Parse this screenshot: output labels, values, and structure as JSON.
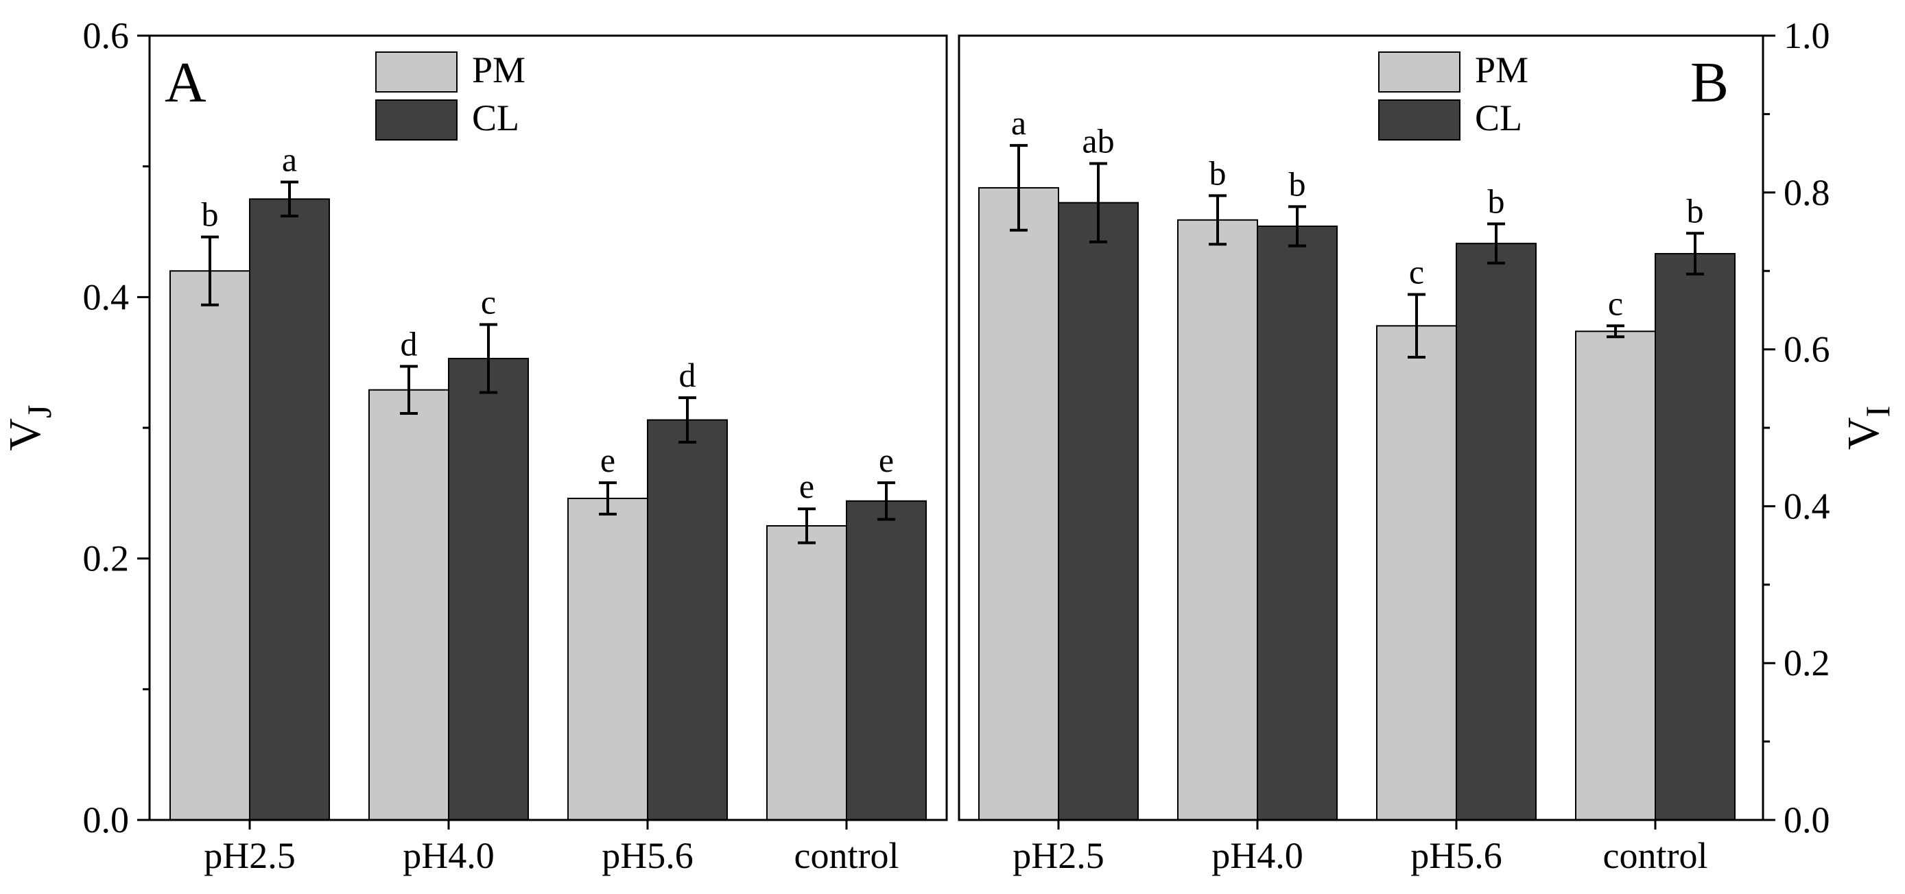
{
  "colors": {
    "PM": "#c8c8c8",
    "CL": "#404040",
    "stroke": "#000000"
  },
  "chart_data": [
    {
      "type": "bar",
      "panel_label": "A",
      "categories": [
        "pH2.5",
        "pH4.0",
        "pH5.6",
        "control"
      ],
      "ylabel_main": "V",
      "ylabel_sub": "J",
      "yaxis_side": "left",
      "ylim": [
        0,
        0.6
      ],
      "yticks": [
        "0.0",
        "0.2",
        "0.4",
        "0.6"
      ],
      "legend_position": "top-center",
      "series": [
        {
          "name": "PM",
          "values": [
            0.42,
            0.329,
            0.246,
            0.225
          ],
          "errors": [
            0.026,
            0.018,
            0.012,
            0.013
          ],
          "labels": [
            "b",
            "d",
            "e",
            "e"
          ]
        },
        {
          "name": "CL",
          "values": [
            0.475,
            0.353,
            0.306,
            0.244
          ],
          "errors": [
            0.013,
            0.026,
            0.017,
            0.014
          ],
          "labels": [
            "a",
            "c",
            "d",
            "e"
          ]
        }
      ]
    },
    {
      "type": "bar",
      "panel_label": "B",
      "categories": [
        "pH2.5",
        "pH4.0",
        "pH5.6",
        "control"
      ],
      "ylabel_main": "V",
      "ylabel_sub": "I",
      "yaxis_side": "right",
      "ylim": [
        0,
        1.0
      ],
      "yticks": [
        "0.0",
        "0.2",
        "0.4",
        "0.6",
        "0.8",
        "1.0"
      ],
      "legend_position": "top-center",
      "series": [
        {
          "name": "PM",
          "values": [
            0.806,
            0.765,
            0.63,
            0.623
          ],
          "errors": [
            0.054,
            0.031,
            0.04,
            0.007
          ],
          "labels": [
            "a",
            "b",
            "c",
            "c"
          ]
        },
        {
          "name": "CL",
          "values": [
            0.787,
            0.757,
            0.735,
            0.722
          ],
          "errors": [
            0.05,
            0.025,
            0.025,
            0.026
          ],
          "labels": [
            "ab",
            "b",
            "b",
            "b"
          ]
        }
      ]
    }
  ]
}
